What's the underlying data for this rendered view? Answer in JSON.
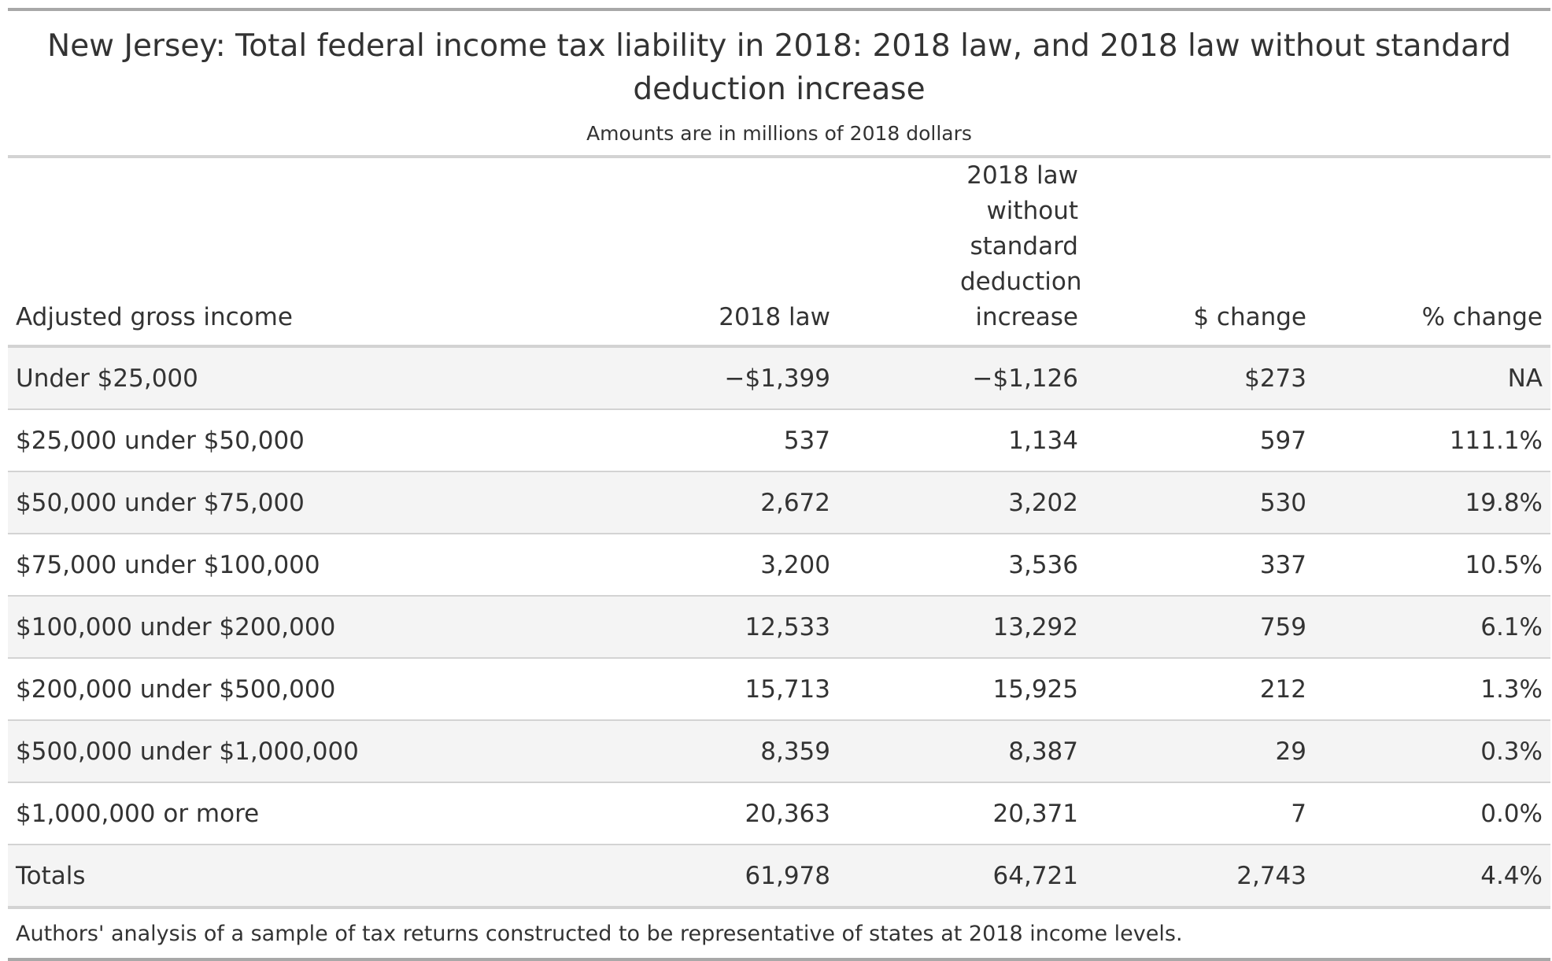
{
  "title": "New Jersey: Total federal income tax liability in 2018: 2018 law, and 2018 law without standard deduction increase",
  "subtitle": "Amounts are in millions of 2018 dollars",
  "columns": {
    "agi": "Adjusted gross income",
    "law2018": "2018 law",
    "law_without": "2018 law without standard deduction increase",
    "dollar_change": "$ change",
    "pct_change": "% change"
  },
  "rows": [
    {
      "agi": "Under $25,000",
      "law2018": "−$1,399",
      "law_without": "−$1,126",
      "dollar_change": "$273",
      "pct_change": "NA"
    },
    {
      "agi": "$25,000 under $50,000",
      "law2018": "537",
      "law_without": "1,134",
      "dollar_change": "597",
      "pct_change": "111.1%"
    },
    {
      "agi": "$50,000 under $75,000",
      "law2018": "2,672",
      "law_without": "3,202",
      "dollar_change": "530",
      "pct_change": "19.8%"
    },
    {
      "agi": "$75,000 under $100,000",
      "law2018": "3,200",
      "law_without": "3,536",
      "dollar_change": "337",
      "pct_change": "10.5%"
    },
    {
      "agi": "$100,000 under $200,000",
      "law2018": "12,533",
      "law_without": "13,292",
      "dollar_change": "759",
      "pct_change": "6.1%"
    },
    {
      "agi": "$200,000 under $500,000",
      "law2018": "15,713",
      "law_without": "15,925",
      "dollar_change": "212",
      "pct_change": "1.3%"
    },
    {
      "agi": "$500,000 under $1,000,000",
      "law2018": "8,359",
      "law_without": "8,387",
      "dollar_change": "29",
      "pct_change": "0.3%"
    },
    {
      "agi": "$1,000,000 or more",
      "law2018": "20,363",
      "law_without": "20,371",
      "dollar_change": "7",
      "pct_change": "0.0%"
    },
    {
      "agi": "Totals",
      "law2018": "61,978",
      "law_without": "64,721",
      "dollar_change": "2,743",
      "pct_change": "4.4%"
    }
  ],
  "source": "Authors' analysis of a sample of tax returns constructed to be representative of states at 2018 income levels."
}
